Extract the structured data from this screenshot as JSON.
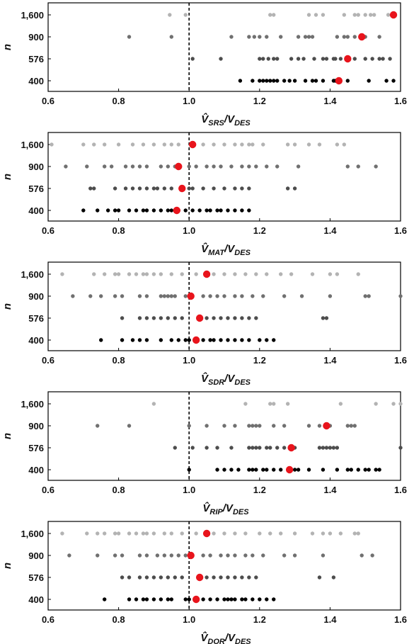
{
  "chart_data": [
    {
      "type": "scatter",
      "ylabel": "n",
      "xlabel": {
        "base": "V",
        "hat": true,
        "sub": "SRS",
        "den": "V",
        "den_sub": "DES"
      },
      "xlim": [
        0.6,
        1.6
      ],
      "x_ticks": [
        "0.6",
        "0.8",
        "1.0",
        "1.2",
        "1.4",
        "1.6"
      ],
      "categories": [
        "1,600",
        "900",
        "576",
        "400"
      ],
      "reference_line": 1.0,
      "series": [
        {
          "n": "1,600",
          "color": "#b3b3b3",
          "values": [
            0.945,
            0.99,
            1.23,
            1.24,
            1.34,
            1.36,
            1.38,
            1.44,
            1.47,
            1.48,
            1.5,
            1.515,
            1.525,
            1.565
          ]
        },
        {
          "n": "900",
          "color": "#707070",
          "values": [
            0.83,
            0.95,
            1.12,
            1.17,
            1.185,
            1.2,
            1.22,
            1.26,
            1.31,
            1.33,
            1.34,
            1.35,
            1.42,
            1.44,
            1.45,
            1.47,
            1.5,
            1.54
          ]
        },
        {
          "n": "576",
          "color": "#4d4d4d",
          "values": [
            1.01,
            1.09,
            1.2,
            1.21,
            1.225,
            1.24,
            1.25,
            1.29,
            1.31,
            1.325,
            1.355,
            1.38,
            1.39,
            1.41,
            1.415,
            1.43,
            1.47,
            1.5,
            1.52,
            1.54,
            1.55,
            1.57
          ]
        },
        {
          "n": "400",
          "color": "#000000",
          "values": [
            1.145,
            1.18,
            1.2,
            1.21,
            1.22,
            1.23,
            1.24,
            1.25,
            1.27,
            1.285,
            1.3,
            1.33,
            1.35,
            1.36,
            1.38,
            1.41,
            1.415,
            1.45,
            1.51,
            1.56,
            1.58
          ]
        }
      ],
      "means": [
        1.58,
        1.49,
        1.45,
        1.425
      ],
      "mean_color": "#e8141c"
    },
    {
      "type": "scatter",
      "ylabel": "n",
      "xlabel": {
        "base": "V",
        "hat": true,
        "sub": "MAT",
        "den": "V",
        "den_sub": "DES"
      },
      "xlim": [
        0.6,
        1.6
      ],
      "x_ticks": [
        "0.6",
        "0.8",
        "1.0",
        "1.2",
        "1.4",
        "1.6"
      ],
      "categories": [
        "1,600",
        "900",
        "576",
        "400"
      ],
      "reference_line": 1.0,
      "series": [
        {
          "n": "1,600",
          "color": "#b3b3b3",
          "values": [
            0.61,
            0.7,
            0.73,
            0.76,
            0.8,
            0.84,
            0.87,
            0.9,
            0.93,
            0.95,
            0.97,
            1.01,
            1.04,
            1.07,
            1.1,
            1.13,
            1.15,
            1.17,
            1.18,
            1.21,
            1.28,
            1.3,
            1.34,
            1.37,
            1.42,
            1.44
          ]
        },
        {
          "n": "900",
          "color": "#707070",
          "values": [
            0.65,
            0.71,
            0.76,
            0.78,
            0.82,
            0.84,
            0.86,
            0.88,
            0.92,
            0.94,
            0.96,
            1.0,
            1.02,
            1.05,
            1.07,
            1.09,
            1.12,
            1.15,
            1.17,
            1.19,
            1.22,
            1.25,
            1.31,
            1.45,
            1.48,
            1.53
          ]
        },
        {
          "n": "576",
          "color": "#4d4d4d",
          "values": [
            0.72,
            0.73,
            0.79,
            0.82,
            0.84,
            0.86,
            0.88,
            0.9,
            0.91,
            0.93,
            0.95,
            0.98,
            1.0,
            1.01,
            1.04,
            1.07,
            1.1,
            1.13,
            1.15,
            1.17,
            1.28,
            1.3
          ]
        },
        {
          "n": "400",
          "color": "#000000",
          "values": [
            0.7,
            0.74,
            0.77,
            0.79,
            0.8,
            0.83,
            0.85,
            0.87,
            0.88,
            0.9,
            0.92,
            0.94,
            0.95,
            0.97,
            0.99,
            1.01,
            1.03,
            1.05,
            1.06,
            1.08,
            1.09,
            1.11,
            1.13,
            1.15,
            1.17
          ]
        }
      ],
      "means": [
        1.01,
        0.97,
        0.98,
        0.965
      ],
      "mean_color": "#e8141c"
    },
    {
      "type": "scatter",
      "ylabel": "n",
      "xlabel": {
        "base": "V",
        "hat": true,
        "sub": "SDR",
        "den": "V",
        "den_sub": "DES"
      },
      "xlim": [
        0.6,
        1.6
      ],
      "x_ticks": [
        "0.6",
        "0.8",
        "1.0",
        "1.2",
        "1.4",
        "1.6"
      ],
      "categories": [
        "1,600",
        "900",
        "576",
        "400"
      ],
      "reference_line": 1.0,
      "series": [
        {
          "n": "1,600",
          "color": "#b3b3b3",
          "values": [
            0.64,
            0.73,
            0.76,
            0.79,
            0.8,
            0.83,
            0.85,
            0.87,
            0.88,
            0.9,
            0.92,
            0.95,
            0.98,
            1.02,
            1.07,
            1.1,
            1.13,
            1.16,
            1.19,
            1.22,
            1.26,
            1.29,
            1.35,
            1.4,
            1.42,
            1.48
          ]
        },
        {
          "n": "900",
          "color": "#707070",
          "values": [
            0.67,
            0.72,
            0.75,
            0.79,
            0.81,
            0.86,
            0.88,
            0.92,
            0.93,
            0.94,
            0.95,
            0.96,
            0.99,
            1.04,
            1.06,
            1.08,
            1.1,
            1.13,
            1.15,
            1.18,
            1.21,
            1.27,
            1.32,
            1.4,
            1.5,
            1.51,
            1.6
          ]
        },
        {
          "n": "576",
          "color": "#4d4d4d",
          "values": [
            0.81,
            0.86,
            0.88,
            0.9,
            0.92,
            0.94,
            0.96,
            0.98,
            1.03,
            1.05,
            1.07,
            1.09,
            1.11,
            1.13,
            1.15,
            1.17,
            1.19,
            1.38,
            1.39
          ]
        },
        {
          "n": "400",
          "color": "#000000",
          "values": [
            0.75,
            0.81,
            0.84,
            0.86,
            0.88,
            0.92,
            0.95,
            0.97,
            0.99,
            1.0,
            1.02,
            1.04,
            1.06,
            1.07,
            1.09,
            1.11,
            1.13,
            1.15,
            1.17,
            1.2,
            1.22,
            1.24
          ]
        }
      ],
      "means": [
        1.05,
        1.005,
        1.03,
        1.02
      ],
      "mean_color": "#e8141c"
    },
    {
      "type": "scatter",
      "ylabel": "n",
      "xlabel": {
        "base": "V",
        "hat": true,
        "sub": "RIP",
        "den": "V",
        "den_sub": "DES"
      },
      "xlim": [
        0.6,
        1.6
      ],
      "x_ticks": [
        "0.6",
        "0.8",
        "1.0",
        "1.2",
        "1.4",
        "1.6"
      ],
      "categories": [
        "1,600",
        "900",
        "576",
        "400"
      ],
      "reference_line": 1.0,
      "series": [
        {
          "n": "1,600",
          "color": "#b3b3b3",
          "values": [
            0.9,
            1.16,
            1.23,
            1.24,
            1.28,
            1.43,
            1.53,
            1.58,
            1.6
          ]
        },
        {
          "n": "900",
          "color": "#707070",
          "values": [
            0.74,
            0.83,
            1.0,
            1.05,
            1.1,
            1.13,
            1.17,
            1.18,
            1.19,
            1.2,
            1.24,
            1.27,
            1.34,
            1.37,
            1.4,
            1.45,
            1.46,
            1.47
          ]
        },
        {
          "n": "576",
          "color": "#4d4d4d",
          "values": [
            0.96,
            1.01,
            1.05,
            1.08,
            1.12,
            1.17,
            1.18,
            1.19,
            1.2,
            1.22,
            1.23,
            1.25,
            1.27,
            1.3,
            1.37,
            1.38,
            1.39,
            1.4,
            1.41,
            1.42,
            1.6
          ]
        },
        {
          "n": "400",
          "color": "#000000",
          "values": [
            1.0,
            1.08,
            1.1,
            1.12,
            1.14,
            1.17,
            1.18,
            1.19,
            1.21,
            1.22,
            1.24,
            1.26,
            1.29,
            1.3,
            1.31,
            1.34,
            1.38,
            1.42,
            1.45,
            1.46,
            1.48,
            1.5,
            1.51,
            1.53,
            1.54
          ]
        }
      ],
      "means": null,
      "means_by_row": [
        null,
        1.39,
        1.29,
        1.285
      ],
      "mean_color": "#e8141c"
    },
    {
      "type": "scatter",
      "ylabel": "n",
      "xlabel": {
        "base": "V",
        "hat": true,
        "sub": "DOR",
        "den": "V",
        "den_sub": "DES"
      },
      "xlim": [
        0.6,
        1.6
      ],
      "x_ticks": [
        "0.6",
        "0.8",
        "1.0",
        "1.2",
        "1.4",
        "1.6"
      ],
      "categories": [
        "1,600",
        "900",
        "576",
        "400"
      ],
      "reference_line": 1.0,
      "series": [
        {
          "n": "1,600",
          "color": "#b3b3b3",
          "values": [
            0.64,
            0.71,
            0.74,
            0.76,
            0.79,
            0.8,
            0.83,
            0.85,
            0.87,
            0.88,
            0.9,
            0.93,
            0.95,
            0.98,
            1.02,
            1.07,
            1.1,
            1.13,
            1.16,
            1.2,
            1.23,
            1.26,
            1.3,
            1.35,
            1.38,
            1.4,
            1.43,
            1.47,
            1.48
          ]
        },
        {
          "n": "900",
          "color": "#707070",
          "values": [
            0.66,
            0.74,
            0.79,
            0.81,
            0.86,
            0.88,
            0.91,
            0.93,
            0.95,
            0.97,
            0.99,
            1.04,
            1.06,
            1.09,
            1.11,
            1.13,
            1.16,
            1.18,
            1.21,
            1.27,
            1.3,
            1.38,
            1.49,
            1.52
          ]
        },
        {
          "n": "576",
          "color": "#4d4d4d",
          "values": [
            0.81,
            0.83,
            0.86,
            0.88,
            0.9,
            0.92,
            0.94,
            0.96,
            0.98,
            1.05,
            1.07,
            1.09,
            1.11,
            1.13,
            1.15,
            1.17,
            1.19,
            1.37,
            1.41
          ]
        },
        {
          "n": "400",
          "color": "#000000",
          "values": [
            0.76,
            0.83,
            0.85,
            0.87,
            0.88,
            0.9,
            0.92,
            0.94,
            0.95,
            0.99,
            1.0,
            1.02,
            1.04,
            1.06,
            1.08,
            1.1,
            1.11,
            1.12,
            1.13,
            1.15,
            1.16,
            1.18,
            1.2,
            1.22,
            1.24
          ]
        }
      ],
      "means": [
        1.05,
        1.005,
        1.03,
        1.02
      ],
      "mean_color": "#e8141c"
    }
  ]
}
